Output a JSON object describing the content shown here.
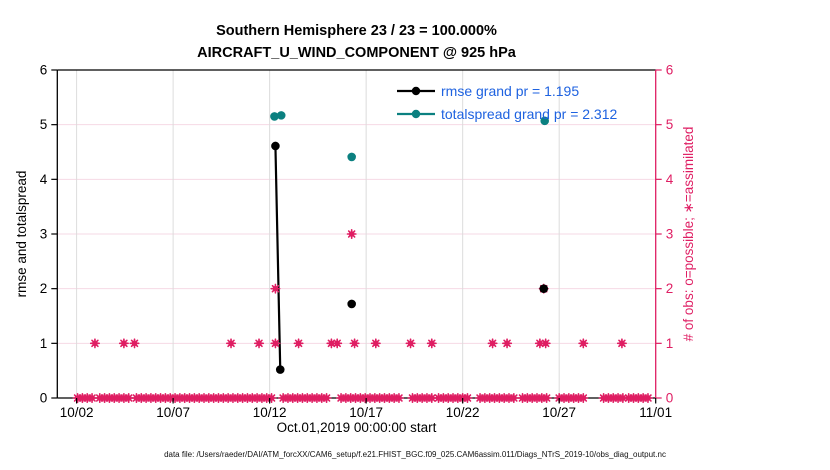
{
  "title": {
    "line1": "Southern Hemisphere 23 / 23 = 100.000%",
    "line2": "AIRCRAFT_U_WIND_COMPONENT @ 925 hPa"
  },
  "xlabel": "Oct.01,2019 00:00:00 start",
  "footer": "data file: /Users/raeder/DAI/ATM_forcXX/CAM6_setup/f.e21.FHIST_BGC.f09_025.CAM6assim.011/Diags_NTrS_2019-10/obs_diag_output.nc",
  "legend": {
    "text_color": "#1e62e0",
    "entries": [
      {
        "label": "rmse grand pr = 1.195",
        "series": "rmse"
      },
      {
        "label": "totalspread grand pr = 2.312",
        "series": "totalspread"
      }
    ]
  },
  "chart_data": {
    "type": "line",
    "title": "Southern Hemisphere 23 / 23 = 100.000% | AIRCRAFT_U_WIND_COMPONENT @ 925 hPa",
    "x_axis": {
      "start": "Oct.01,2019 00:00:00",
      "range_days": [
        0,
        31
      ],
      "ticks": [
        {
          "day": 1,
          "label": "10/02"
        },
        {
          "day": 6,
          "label": "10/07"
        },
        {
          "day": 11,
          "label": "10/12"
        },
        {
          "day": 16,
          "label": "10/17"
        },
        {
          "day": 21,
          "label": "10/22"
        },
        {
          "day": 26,
          "label": "10/27"
        },
        {
          "day": 31,
          "label": "11/01"
        }
      ]
    },
    "left_axis": {
      "label": "rmse and totalspread",
      "range": [
        0,
        6
      ],
      "ticks": [
        0,
        1,
        2,
        3,
        4,
        5,
        6
      ],
      "color": "#000000"
    },
    "right_axis": {
      "label": "# of obs: o=possible; ∗=assimilated",
      "range": [
        0,
        6
      ],
      "ticks": [
        0,
        1,
        2,
        3,
        4,
        5,
        6
      ],
      "color": "#df1e63"
    },
    "grid": {
      "h_color": "#f6d9e4",
      "v_color": "#dcdcdc"
    },
    "series": [
      {
        "name": "rmse",
        "color": "#000000",
        "points": [
          [
            11.3,
            4.61
          ],
          [
            11.55,
            0.52
          ],
          [
            15.25,
            1.72
          ],
          [
            25.2,
            2.0
          ]
        ],
        "segments": [
          [
            0,
            1
          ]
        ]
      },
      {
        "name": "totalspread",
        "color": "#0b8080",
        "points": [
          [
            11.25,
            5.15
          ],
          [
            11.6,
            5.17
          ],
          [
            15.25,
            4.41
          ],
          [
            25.25,
            5.07
          ]
        ],
        "segments": [
          [
            0,
            1
          ]
        ]
      }
    ],
    "obs_counts": {
      "color": "#df1e63",
      "count1_days": [
        1.95,
        3.45,
        4.0,
        9.0,
        10.45,
        11.3,
        12.5,
        14.2,
        14.5,
        15.4,
        16.5,
        18.3,
        19.4,
        22.55,
        23.3,
        25.0,
        25.3,
        27.25,
        29.25
      ],
      "count2_days": [
        11.3,
        25.2
      ],
      "count3_days": [
        15.25
      ],
      "zero_runs_days": [
        [
          1.05,
          1.9
        ],
        [
          2.2,
          3.85
        ],
        [
          4.1,
          10.35
        ],
        [
          10.6,
          11.2
        ],
        [
          11.7,
          12.5
        ],
        [
          12.7,
          14.1
        ],
        [
          14.7,
          15.2
        ],
        [
          15.45,
          17.9
        ],
        [
          18.4,
          19.4
        ],
        [
          19.75,
          21.4
        ],
        [
          21.9,
          23.7
        ],
        [
          24.1,
          25.5
        ],
        [
          26.0,
          27.4
        ],
        [
          28.3,
          29.35
        ],
        [
          29.6,
          30.75
        ]
      ],
      "zero_step_days": 0.25
    }
  }
}
